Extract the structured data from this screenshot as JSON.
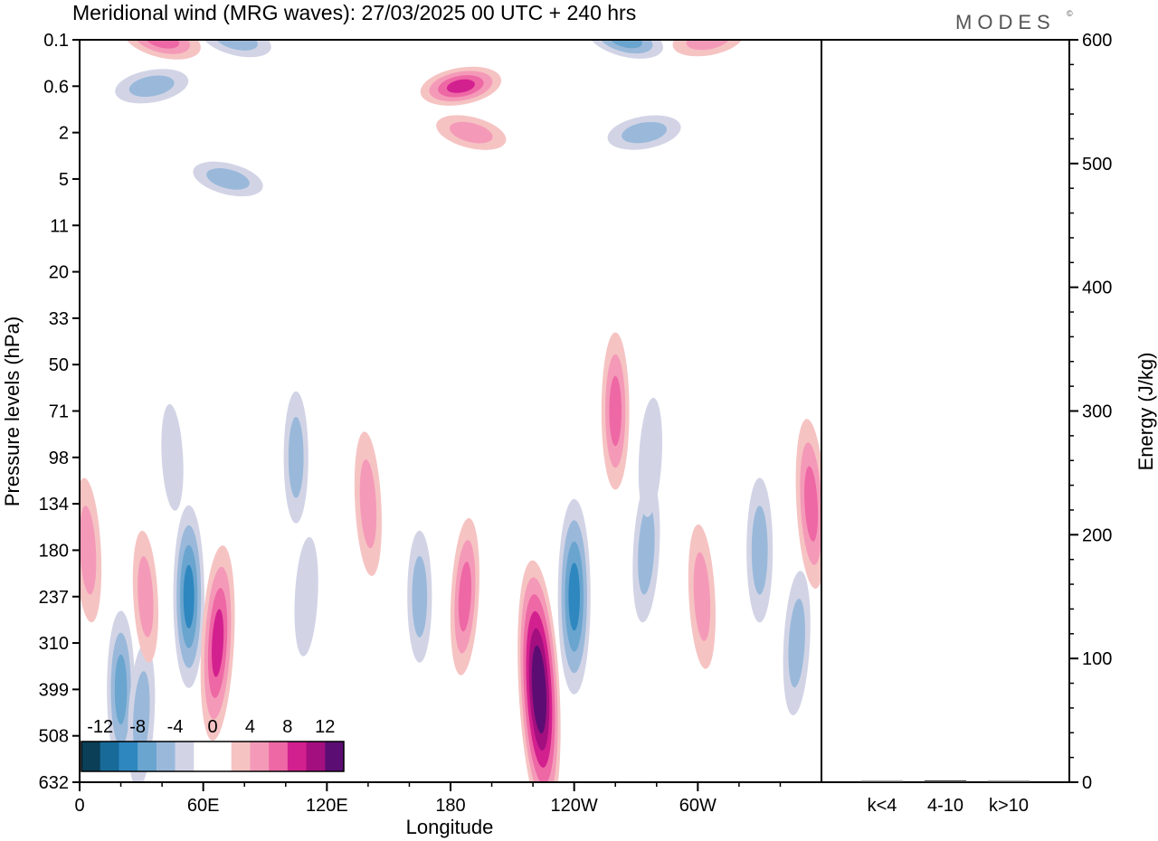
{
  "header": {
    "title": "Meridional wind (MRG waves):  27/03/2025  00 UTC  + 240 hrs",
    "brand": "MODES",
    "brand_mark": "©"
  },
  "colors": {
    "scale": [
      "#0b3f57",
      "#186b98",
      "#2f87bf",
      "#6aa5cf",
      "#9ab9da",
      "#d2d4e6",
      "#ffffff",
      "#ffffff",
      "#f6c3c3",
      "#f49ab8",
      "#ee68a5",
      "#d3208f",
      "#a40f80",
      "#5c0d73"
    ],
    "axis": "#000000"
  },
  "chart_data": [
    {
      "type": "heatmap",
      "title": "Meridional wind (MRG waves):  27/03/2025  00 UTC  + 240 hrs",
      "xlabel": "Longitude",
      "ylabel": "Pressure levels (hPa)",
      "x_ticks": [
        "0",
        "60E",
        "120E",
        "180",
        "120W",
        "60W"
      ],
      "x_tick_values": [
        0,
        60,
        120,
        180,
        240,
        300
      ],
      "xlim": [
        0,
        360
      ],
      "y_ticks": [
        "0.1",
        "0.6",
        "2",
        "5",
        "11",
        "20",
        "33",
        "50",
        "71",
        "98",
        "134",
        "180",
        "237",
        "310",
        "399",
        "508",
        "632"
      ],
      "colorbar": {
        "labels": [
          "-12",
          "-8",
          "-4",
          "0",
          "4",
          "8",
          "12"
        ],
        "levels": [
          -14,
          -12,
          -10,
          -8,
          -6,
          -4,
          -2,
          0,
          2,
          4,
          6,
          8,
          10,
          12,
          14
        ]
      },
      "features": [
        {
          "lon": 4,
          "level": "180",
          "value": 5
        },
        {
          "lon": 20,
          "level": "399",
          "value": -6
        },
        {
          "lon": 30,
          "level": "457",
          "value": -5
        },
        {
          "lon": 32,
          "level": "237",
          "value": 4
        },
        {
          "lon": 53,
          "level": "237",
          "value": -8
        },
        {
          "lon": 67,
          "level": "310",
          "value": 9
        },
        {
          "lon": 45,
          "level": "98",
          "value": -2
        },
        {
          "lon": 105,
          "level": "98",
          "value": -4
        },
        {
          "lon": 110,
          "level": "237",
          "value": -3
        },
        {
          "lon": 140,
          "level": "134",
          "value": 5
        },
        {
          "lon": 165,
          "level": "237",
          "value": -4
        },
        {
          "lon": 187,
          "level": "237",
          "value": 6
        },
        {
          "lon": 223,
          "level": "399",
          "value": 14
        },
        {
          "lon": 240,
          "level": "237",
          "value": -9
        },
        {
          "lon": 275,
          "level": "180",
          "value": -5
        },
        {
          "lon": 302,
          "level": "237",
          "value": 5
        },
        {
          "lon": 330,
          "level": "180",
          "value": -5
        },
        {
          "lon": 348,
          "level": "310",
          "value": -5
        },
        {
          "lon": 355,
          "level": "134",
          "value": 7
        },
        {
          "lon": 260,
          "level": "71",
          "value": 6
        },
        {
          "lon": 277,
          "level": "98",
          "value": -3
        },
        {
          "lon": 40,
          "level": "0.1",
          "value": 7
        },
        {
          "lon": 35,
          "level": "0.6",
          "value": -5
        },
        {
          "lon": 76,
          "level": "0.1",
          "value": -4
        },
        {
          "lon": 185,
          "level": "0.6",
          "value": 8
        },
        {
          "lon": 265,
          "level": "0.1",
          "value": -6
        },
        {
          "lon": 274,
          "level": "2",
          "value": -5
        },
        {
          "lon": 72,
          "level": "5",
          "value": -4
        },
        {
          "lon": 305,
          "level": "0.1",
          "value": 4
        },
        {
          "lon": 190,
          "level": "2",
          "value": 4
        }
      ]
    },
    {
      "type": "bar",
      "ylabel": "Energy (J/kg)",
      "categories": [
        "k<4",
        "4-10",
        "k>10"
      ],
      "values": [
        0.5,
        1.5,
        0.5
      ],
      "ylim": [
        0,
        600
      ],
      "y_ticks": [
        "0",
        "100",
        "200",
        "300",
        "400",
        "500",
        "600"
      ],
      "y_tick_values": [
        0,
        100,
        200,
        300,
        400,
        500,
        600
      ]
    }
  ]
}
